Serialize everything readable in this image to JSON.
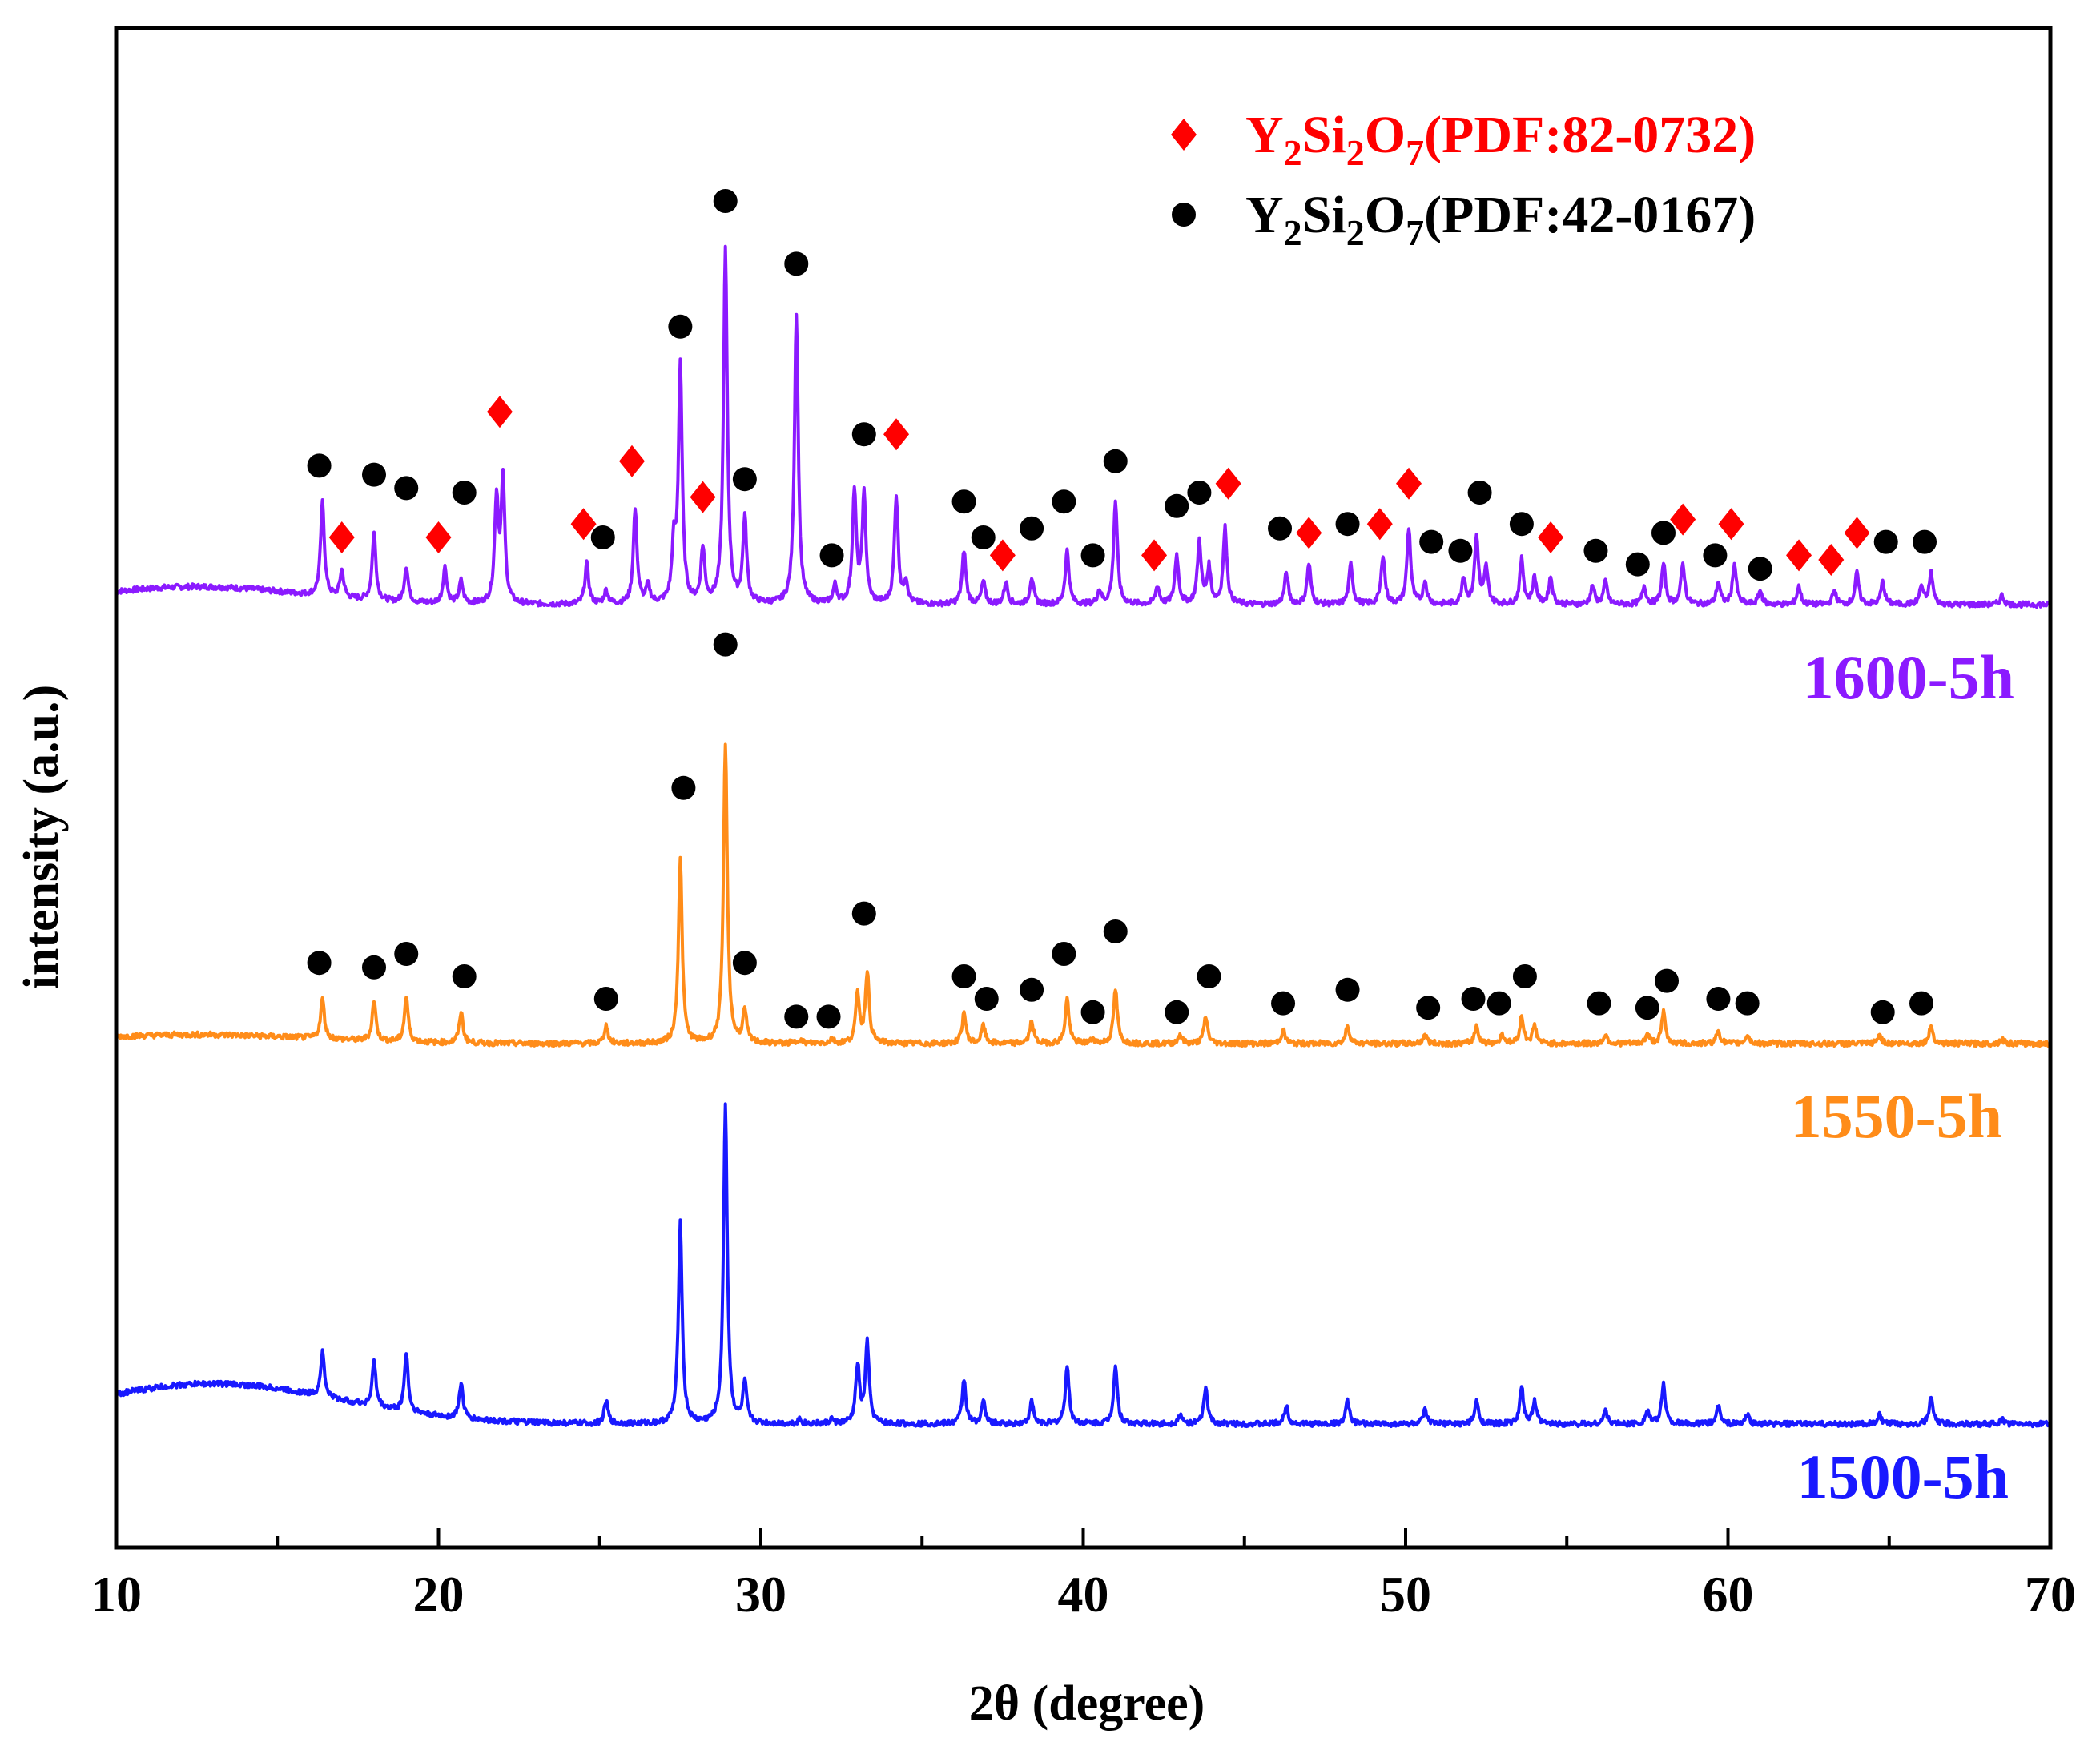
{
  "chart_data": {
    "type": "line",
    "title": "",
    "xlabel": "2θ (degree)",
    "ylabel": "intensity (a.u.)",
    "xlim": [
      10,
      70
    ],
    "x_ticks": [
      "10",
      "20",
      "30",
      "40",
      "50",
      "60",
      "70"
    ],
    "x_tick_values": [
      10,
      20,
      30,
      40,
      50,
      60,
      70
    ],
    "y_ticks": [],
    "grid": false,
    "legend": {
      "placement": "top-right",
      "entries": [
        {
          "marker": "diamond",
          "color": "#ff0000",
          "parts": [
            {
              "t": "Y",
              "s": "n"
            },
            {
              "t": "2",
              "s": "sub"
            },
            {
              "t": "Si",
              "s": "n"
            },
            {
              "t": "2",
              "s": "sub"
            },
            {
              "t": "O",
              "s": "n"
            },
            {
              "t": "7",
              "s": "sub"
            },
            {
              "t": "(PDF:82-0732)",
              "s": "n"
            }
          ]
        },
        {
          "marker": "circle",
          "color": "#000000",
          "parts": [
            {
              "t": "Y",
              "s": "n"
            },
            {
              "t": "2",
              "s": "sub"
            },
            {
              "t": "Si",
              "s": "n"
            },
            {
              "t": "2",
              "s": "sub"
            },
            {
              "t": "O",
              "s": "n"
            },
            {
              "t": "7",
              "s": "sub"
            },
            {
              "t": "(PDF:42-0167)",
              "s": "n"
            }
          ]
        }
      ]
    },
    "series": [
      {
        "name": "1600-5h",
        "color": "#8b1aff",
        "baseline": 0.0,
        "hump": {
          "center": 12.5,
          "width": 4.5,
          "height": 0.04
        },
        "peaks": [
          [
            16.4,
            0.21
          ],
          [
            17.0,
            0.06
          ],
          [
            18.0,
            0.15
          ],
          [
            19.0,
            0.08
          ],
          [
            20.2,
            0.08
          ],
          [
            20.7,
            0.05
          ],
          [
            21.8,
            0.23
          ],
          [
            22.0,
            0.27
          ],
          [
            24.6,
            0.09
          ],
          [
            25.2,
            0.03
          ],
          [
            26.1,
            0.21
          ],
          [
            26.5,
            0.04
          ],
          [
            27.3,
            0.12
          ],
          [
            27.5,
            0.53
          ],
          [
            28.2,
            0.12
          ],
          [
            28.9,
            0.79
          ],
          [
            29.5,
            0.19
          ],
          [
            31.1,
            0.65
          ],
          [
            32.3,
            0.04
          ],
          [
            32.9,
            0.25
          ],
          [
            33.2,
            0.24
          ],
          [
            34.2,
            0.24
          ],
          [
            34.5,
            0.05
          ],
          [
            36.3,
            0.12
          ],
          [
            36.9,
            0.05
          ],
          [
            37.6,
            0.05
          ],
          [
            38.4,
            0.06
          ],
          [
            39.5,
            0.12
          ],
          [
            40.5,
            0.03
          ],
          [
            41.0,
            0.23
          ],
          [
            42.3,
            0.04
          ],
          [
            42.9,
            0.11
          ],
          [
            43.6,
            0.14
          ],
          [
            43.9,
            0.08
          ],
          [
            44.4,
            0.17
          ],
          [
            46.3,
            0.07
          ],
          [
            47.0,
            0.09
          ],
          [
            48.3,
            0.09
          ],
          [
            49.3,
            0.11
          ],
          [
            50.1,
            0.17
          ],
          [
            50.6,
            0.05
          ],
          [
            51.8,
            0.06
          ],
          [
            52.2,
            0.15
          ],
          [
            52.5,
            0.08
          ],
          [
            53.6,
            0.1
          ],
          [
            54.0,
            0.06
          ],
          [
            54.5,
            0.06
          ],
          [
            55.8,
            0.04
          ],
          [
            56.2,
            0.05
          ],
          [
            57.4,
            0.04
          ],
          [
            58.0,
            0.09
          ],
          [
            58.6,
            0.09
          ],
          [
            59.7,
            0.05
          ],
          [
            60.2,
            0.09
          ],
          [
            61.0,
            0.03
          ],
          [
            62.2,
            0.04
          ],
          [
            63.3,
            0.03
          ],
          [
            64.0,
            0.07
          ],
          [
            64.8,
            0.05
          ],
          [
            66.0,
            0.04
          ],
          [
            66.3,
            0.07
          ],
          [
            68.5,
            0.02
          ]
        ],
        "label": "1600-5h"
      },
      {
        "name": "1550-5h",
        "color": "#ff8c19",
        "baseline": 0.0,
        "hump": {
          "center": 12.5,
          "width": 5.0,
          "height": 0.02
        },
        "peaks": [
          [
            16.4,
            0.09
          ],
          [
            18.0,
            0.09
          ],
          [
            19.0,
            0.1
          ],
          [
            20.7,
            0.07
          ],
          [
            25.2,
            0.04
          ],
          [
            27.5,
            0.41
          ],
          [
            28.9,
            0.67
          ],
          [
            29.5,
            0.07
          ],
          [
            31.2,
            0.01
          ],
          [
            32.2,
            0.01
          ],
          [
            33.0,
            0.11
          ],
          [
            33.3,
            0.16
          ],
          [
            36.3,
            0.07
          ],
          [
            36.9,
            0.04
          ],
          [
            38.4,
            0.05
          ],
          [
            39.5,
            0.1
          ],
          [
            40.3,
            0.01
          ],
          [
            41.0,
            0.12
          ],
          [
            43.0,
            0.02
          ],
          [
            43.8,
            0.06
          ],
          [
            46.2,
            0.03
          ],
          [
            48.2,
            0.04
          ],
          [
            50.6,
            0.02
          ],
          [
            52.2,
            0.04
          ],
          [
            53.0,
            0.02
          ],
          [
            53.6,
            0.06
          ],
          [
            54.0,
            0.04
          ],
          [
            56.2,
            0.02
          ],
          [
            57.5,
            0.02
          ],
          [
            58.0,
            0.07
          ],
          [
            59.7,
            0.03
          ],
          [
            60.6,
            0.02
          ],
          [
            64.7,
            0.02
          ],
          [
            66.3,
            0.04
          ],
          [
            68.5,
            0.01
          ]
        ],
        "label": "1550-5h"
      },
      {
        "name": "1500-5h",
        "color": "#1919ff",
        "baseline": 0.0,
        "hump": {
          "center": 13.0,
          "width": 5.5,
          "height": 0.09
        },
        "peaks": [
          [
            16.4,
            0.1
          ],
          [
            18.0,
            0.1
          ],
          [
            19.0,
            0.13
          ],
          [
            20.7,
            0.08
          ],
          [
            25.2,
            0.05
          ],
          [
            27.5,
            0.45
          ],
          [
            28.9,
            0.71
          ],
          [
            29.5,
            0.09
          ],
          [
            31.2,
            0.01
          ],
          [
            32.2,
            0.01
          ],
          [
            33.0,
            0.13
          ],
          [
            33.3,
            0.18
          ],
          [
            36.3,
            0.1
          ],
          [
            36.9,
            0.05
          ],
          [
            38.4,
            0.05
          ],
          [
            39.5,
            0.13
          ],
          [
            41.0,
            0.13
          ],
          [
            43.0,
            0.02
          ],
          [
            43.8,
            0.08
          ],
          [
            46.3,
            0.04
          ],
          [
            48.2,
            0.05
          ],
          [
            50.6,
            0.03
          ],
          [
            52.2,
            0.05
          ],
          [
            53.6,
            0.08
          ],
          [
            54.0,
            0.05
          ],
          [
            56.2,
            0.03
          ],
          [
            57.5,
            0.03
          ],
          [
            58.0,
            0.09
          ],
          [
            59.7,
            0.04
          ],
          [
            60.6,
            0.02
          ],
          [
            64.7,
            0.02
          ],
          [
            66.3,
            0.06
          ],
          [
            68.5,
            0.01
          ]
        ],
        "label": "1500-5h"
      }
    ],
    "markers": {
      "1600-5h": [
        [
          "circle",
          16.3,
          0.31
        ],
        [
          "diamond",
          17.0,
          0.15
        ],
        [
          "circle",
          18.0,
          0.29
        ],
        [
          "circle",
          19.0,
          0.26
        ],
        [
          "diamond",
          20.0,
          0.15
        ],
        [
          "circle",
          20.8,
          0.25
        ],
        [
          "diamond",
          21.9,
          0.43
        ],
        [
          "diamond",
          24.5,
          0.18
        ],
        [
          "circle",
          25.1,
          0.15
        ],
        [
          "diamond",
          26.0,
          0.32
        ],
        [
          "circle",
          27.5,
          0.62
        ],
        [
          "diamond",
          28.2,
          0.24
        ],
        [
          "circle",
          28.9,
          0.9
        ],
        [
          "circle",
          29.5,
          0.28
        ],
        [
          "circle",
          31.1,
          0.76
        ],
        [
          "circle",
          32.2,
          0.11
        ],
        [
          "circle",
          33.2,
          0.38
        ],
        [
          "diamond",
          34.2,
          0.38
        ],
        [
          "circle",
          36.3,
          0.23
        ],
        [
          "circle",
          36.9,
          0.15
        ],
        [
          "diamond",
          37.5,
          0.11
        ],
        [
          "circle",
          38.4,
          0.17
        ],
        [
          "circle",
          39.4,
          0.23
        ],
        [
          "circle",
          40.3,
          0.11
        ],
        [
          "circle",
          41.0,
          0.32
        ],
        [
          "diamond",
          42.2,
          0.11
        ],
        [
          "circle",
          42.9,
          0.22
        ],
        [
          "circle",
          43.6,
          0.25
        ],
        [
          "diamond",
          44.5,
          0.27
        ],
        [
          "circle",
          46.1,
          0.17
        ],
        [
          "diamond",
          47.0,
          0.16
        ],
        [
          "circle",
          48.2,
          0.18
        ],
        [
          "diamond",
          49.2,
          0.18
        ],
        [
          "diamond",
          50.1,
          0.27
        ],
        [
          "circle",
          50.8,
          0.14
        ],
        [
          "circle",
          51.7,
          0.12
        ],
        [
          "circle",
          52.3,
          0.25
        ],
        [
          "circle",
          53.6,
          0.18
        ],
        [
          "diamond",
          54.5,
          0.15
        ],
        [
          "circle",
          55.9,
          0.12
        ],
        [
          "circle",
          57.2,
          0.09
        ],
        [
          "circle",
          58.0,
          0.16
        ],
        [
          "diamond",
          58.6,
          0.19
        ],
        [
          "circle",
          59.6,
          0.11
        ],
        [
          "diamond",
          60.1,
          0.18
        ],
        [
          "circle",
          61.0,
          0.08
        ],
        [
          "diamond",
          62.2,
          0.11
        ],
        [
          "diamond",
          63.2,
          0.1
        ],
        [
          "diamond",
          64.0,
          0.16
        ],
        [
          "circle",
          64.9,
          0.14
        ],
        [
          "circle",
          66.1,
          0.14
        ]
      ],
      "1550-5h": [
        [
          "circle",
          16.3,
          0.18
        ],
        [
          "circle",
          18.0,
          0.17
        ],
        [
          "circle",
          19.0,
          0.2
        ],
        [
          "circle",
          20.8,
          0.15
        ],
        [
          "circle",
          25.2,
          0.1
        ],
        [
          "circle",
          27.6,
          0.57
        ],
        [
          "circle",
          28.9,
          0.89
        ],
        [
          "circle",
          29.5,
          0.18
        ],
        [
          "circle",
          31.1,
          0.06
        ],
        [
          "circle",
          32.1,
          0.06
        ],
        [
          "circle",
          33.2,
          0.29
        ],
        [
          "circle",
          36.3,
          0.15
        ],
        [
          "circle",
          37.0,
          0.1
        ],
        [
          "circle",
          38.4,
          0.12
        ],
        [
          "circle",
          39.4,
          0.2
        ],
        [
          "circle",
          40.3,
          0.07
        ],
        [
          "circle",
          41.0,
          0.25
        ],
        [
          "circle",
          42.9,
          0.07
        ],
        [
          "circle",
          43.9,
          0.15
        ],
        [
          "circle",
          46.2,
          0.09
        ],
        [
          "circle",
          48.2,
          0.12
        ],
        [
          "circle",
          50.7,
          0.08
        ],
        [
          "circle",
          52.1,
          0.1
        ],
        [
          "circle",
          52.9,
          0.09
        ],
        [
          "circle",
          53.7,
          0.15
        ],
        [
          "circle",
          56.0,
          0.09
        ],
        [
          "circle",
          57.5,
          0.08
        ],
        [
          "circle",
          58.1,
          0.14
        ],
        [
          "circle",
          59.7,
          0.1
        ],
        [
          "circle",
          60.6,
          0.09
        ],
        [
          "circle",
          64.8,
          0.07
        ],
        [
          "circle",
          66.0,
          0.09
        ]
      ]
    }
  }
}
